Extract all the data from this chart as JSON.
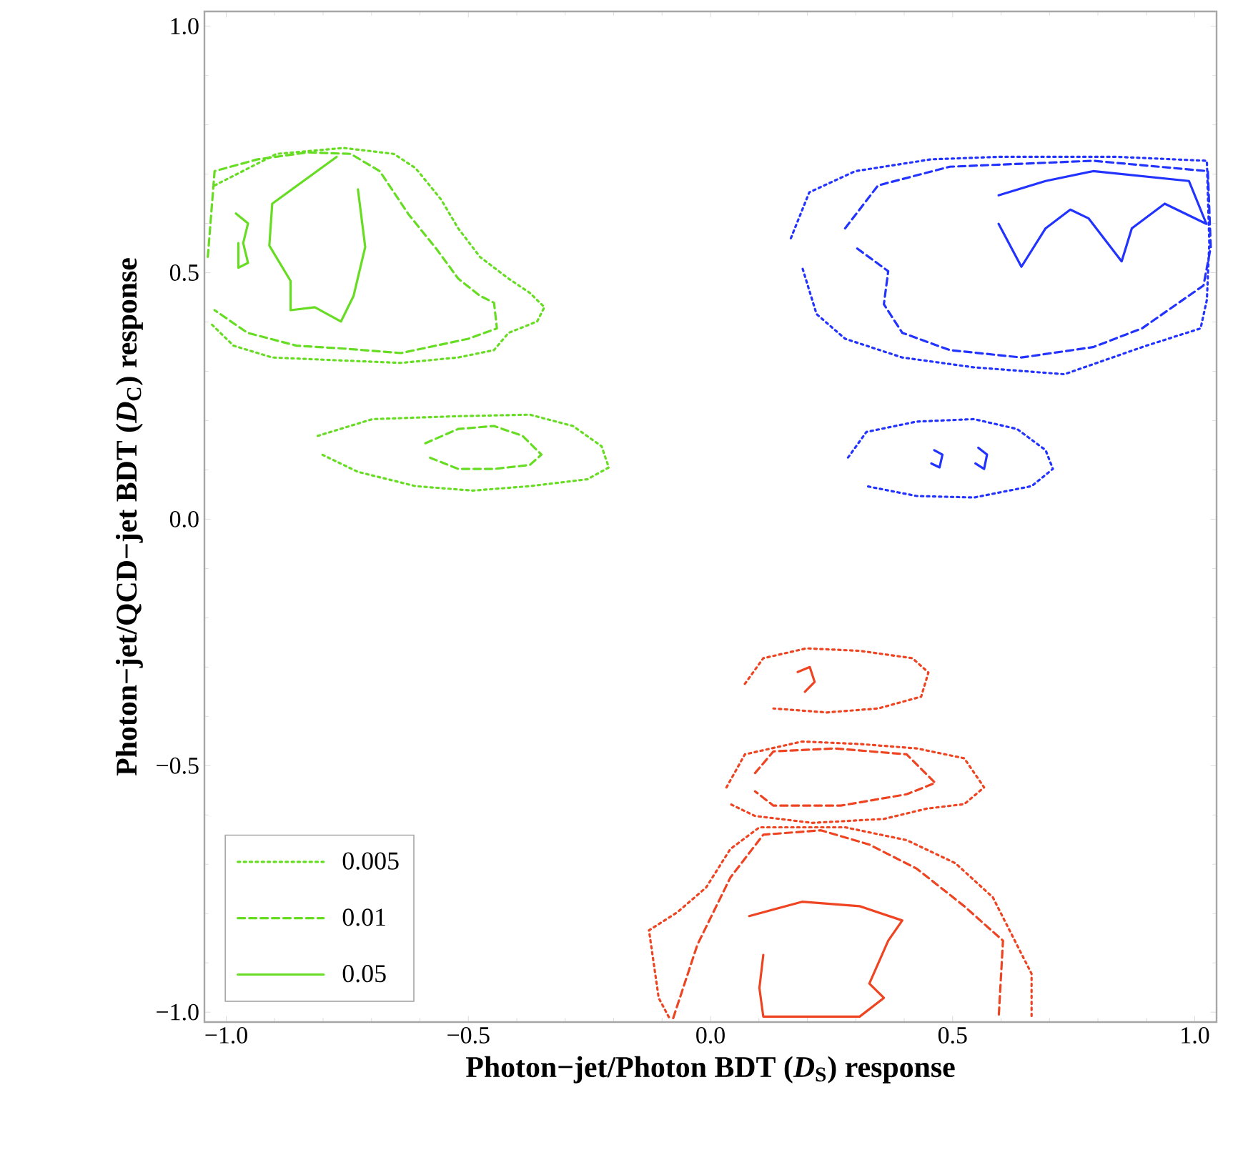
{
  "chart_data": {
    "type": "line",
    "xlabel": "Photon−jet/Photon BDT (*D*$_{S}$) response",
    "ylabel": "Photon−jet/QCD−jet BDT (*D*$_{C}$) response",
    "xlim": [
      -1.045,
      1.045
    ],
    "ylim": [
      -1.02,
      1.03
    ],
    "xticks": [
      {
        "value": -1.0,
        "label": "−1.0"
      },
      {
        "value": -0.5,
        "label": "−0.5"
      },
      {
        "value": 0.0,
        "label": "0.0"
      },
      {
        "value": 0.5,
        "label": "0.5"
      },
      {
        "value": 1.0,
        "label": "1.0"
      }
    ],
    "yticks": [
      {
        "value": -1.0,
        "label": "−1.0"
      },
      {
        "value": -0.5,
        "label": "−0.5"
      },
      {
        "value": 0.0,
        "label": "0.0"
      },
      {
        "value": 0.5,
        "label": "0.5"
      },
      {
        "value": 1.0,
        "label": "1.0"
      }
    ],
    "grid": false,
    "legend": "bottom left",
    "marker": "none",
    "series": [
      {
        "name": "0.005",
        "color": "#66dd22",
        "line_style": "dotted",
        "x": [
          -1.024,
          -0.896,
          -0.757,
          -0.654,
          -0.609,
          -0.556,
          -0.521,
          -0.476,
          -0.417,
          -0.373,
          -0.343,
          -0.358,
          -0.417,
          -0.447,
          -0.521,
          -0.639,
          -0.787,
          -0.905,
          -0.985,
          -1.033
        ],
        "values": [
          0.677,
          0.741,
          0.753,
          0.741,
          0.712,
          0.648,
          0.59,
          0.532,
          0.488,
          0.459,
          0.43,
          0.401,
          0.378,
          0.343,
          0.328,
          0.317,
          0.323,
          0.328,
          0.352,
          0.398
        ]
      },
      {
        "name": "0.01",
        "color": "#66dd22",
        "line_style": "dashed",
        "x": [
          -1.038,
          -1.024,
          -0.935,
          -0.831,
          -0.743,
          -0.683,
          -0.624,
          -0.565,
          -0.521,
          -0.476,
          -0.447,
          -0.441,
          -0.5,
          -0.639,
          -0.757,
          -0.855,
          -0.956,
          -1.024
        ],
        "values": [
          0.532,
          0.706,
          0.73,
          0.744,
          0.741,
          0.706,
          0.619,
          0.547,
          0.488,
          0.453,
          0.439,
          0.387,
          0.366,
          0.337,
          0.346,
          0.352,
          0.378,
          0.424
        ]
      },
      {
        "name": "0.05",
        "color": "#66dd22",
        "line_style": "solid",
        "x": [
          -0.772,
          -0.905,
          -0.911,
          -0.867,
          -0.867,
          -0.817,
          -0.763,
          -0.737,
          -0.713,
          -0.728
        ],
        "values": [
          0.735,
          0.64,
          0.555,
          0.483,
          0.424,
          0.43,
          0.401,
          0.453,
          0.552,
          0.669
        ]
      },
      {
        "color": "#66dd22",
        "line_style": "solid",
        "x": [
          -0.98,
          -0.955,
          -0.965,
          -0.955,
          -0.975,
          -0.975
        ],
        "values": [
          0.62,
          0.6,
          0.56,
          0.52,
          0.51,
          0.56
        ]
      },
      {
        "color": "#66dd22",
        "line_style": "dotted",
        "x": [
          -0.811,
          -0.698,
          -0.521,
          -0.373,
          -0.284,
          -0.225,
          -0.21,
          -0.254,
          -0.373,
          -0.491,
          -0.609,
          -0.728,
          -0.802
        ],
        "values": [
          0.169,
          0.203,
          0.209,
          0.212,
          0.189,
          0.148,
          0.105,
          0.081,
          0.067,
          0.058,
          0.067,
          0.096,
          0.131
        ]
      },
      {
        "color": "#66dd22",
        "line_style": "dashed",
        "x": [
          -0.589,
          -0.521,
          -0.447,
          -0.388,
          -0.349,
          -0.373,
          -0.447,
          -0.521,
          -0.58
        ],
        "values": [
          0.154,
          0.183,
          0.189,
          0.169,
          0.131,
          0.11,
          0.102,
          0.102,
          0.125
        ]
      },
      {
        "color": "#2233ff",
        "line_style": "dotted",
        "x": [
          0.166,
          0.204,
          0.299,
          0.456,
          0.595,
          0.84,
          1.025,
          1.03,
          1.025,
          1.012,
          0.891,
          0.731,
          0.544,
          0.396,
          0.278,
          0.219,
          0.189
        ],
        "values": [
          0.57,
          0.663,
          0.706,
          0.73,
          0.735,
          0.735,
          0.727,
          0.561,
          0.445,
          0.387,
          0.349,
          0.294,
          0.308,
          0.328,
          0.366,
          0.416,
          0.512
        ]
      },
      {
        "color": "#2233ff",
        "line_style": "dashed",
        "x": [
          0.278,
          0.346,
          0.494,
          0.79,
          1.027,
          1.033,
          1.018,
          0.891,
          0.79,
          0.642,
          0.494,
          0.396,
          0.358,
          0.367,
          0.299
        ],
        "values": [
          0.59,
          0.677,
          0.715,
          0.727,
          0.706,
          0.552,
          0.474,
          0.387,
          0.349,
          0.328,
          0.343,
          0.378,
          0.436,
          0.503,
          0.552
        ]
      },
      {
        "color": "#2233ff",
        "line_style": "solid",
        "x": [
          0.595,
          0.692,
          0.79,
          0.988,
          1.024,
          0.938,
          0.87,
          0.849,
          0.781,
          0.743,
          0.692,
          0.642,
          0.595
        ],
        "values": [
          0.657,
          0.686,
          0.706,
          0.686,
          0.599,
          0.64,
          0.59,
          0.523,
          0.61,
          0.628,
          0.59,
          0.512,
          0.599
        ]
      },
      {
        "color": "#2233ff",
        "line_style": "dotted",
        "x": [
          0.284,
          0.322,
          0.426,
          0.544,
          0.633,
          0.692,
          0.707,
          0.663,
          0.544,
          0.426,
          0.322
        ],
        "values": [
          0.125,
          0.177,
          0.198,
          0.203,
          0.183,
          0.14,
          0.102,
          0.067,
          0.044,
          0.047,
          0.067
        ]
      },
      {
        "color": "#2233ff",
        "line_style": "solid",
        "x": [
          0.462,
          0.479,
          0.473,
          0.456
        ],
        "values": [
          0.14,
          0.131,
          0.105,
          0.113
        ]
      },
      {
        "color": "#2233ff",
        "line_style": "solid",
        "x": [
          0.553,
          0.571,
          0.565,
          0.547
        ],
        "values": [
          0.145,
          0.131,
          0.102,
          0.113
        ]
      },
      {
        "color": "#ee4422",
        "line_style": "dotted",
        "x": [
          0.071,
          0.109,
          0.198,
          0.308,
          0.417,
          0.45,
          0.435,
          0.346,
          0.24,
          0.13
        ],
        "values": [
          -0.334,
          -0.282,
          -0.262,
          -0.267,
          -0.282,
          -0.311,
          -0.36,
          -0.384,
          -0.392,
          -0.384
        ]
      },
      {
        "color": "#ee4422",
        "line_style": "solid",
        "x": [
          0.18,
          0.205,
          0.215,
          0.195
        ],
        "values": [
          -0.31,
          -0.3,
          -0.33,
          -0.35
        ]
      },
      {
        "color": "#ee4422",
        "line_style": "dotted",
        "x": [
          0.033,
          0.071,
          0.189,
          0.308,
          0.426,
          0.524,
          0.565,
          0.524,
          0.447,
          0.358,
          0.21,
          0.092,
          0.041
        ],
        "values": [
          -0.544,
          -0.477,
          -0.451,
          -0.456,
          -0.465,
          -0.485,
          -0.544,
          -0.578,
          -0.587,
          -0.608,
          -0.616,
          -0.602,
          -0.578
        ]
      },
      {
        "color": "#ee4422",
        "line_style": "dashed",
        "x": [
          0.092,
          0.13,
          0.257,
          0.405,
          0.464,
          0.405,
          0.269,
          0.13,
          0.092
        ],
        "values": [
          -0.515,
          -0.471,
          -0.465,
          -0.477,
          -0.535,
          -0.558,
          -0.581,
          -0.581,
          -0.552
        ]
      },
      {
        "color": "#ee4422",
        "line_style": "dotted",
        "x": [
          -0.086,
          -0.107,
          -0.127,
          -0.068,
          -0.009,
          0.041,
          0.101,
          0.278,
          0.405,
          0.506,
          0.583,
          0.663,
          0.663
        ],
        "values": [
          -1.01,
          -0.971,
          -0.834,
          -0.797,
          -0.747,
          -0.669,
          -0.625,
          -0.625,
          -0.651,
          -0.698,
          -0.767,
          -0.922,
          -1.009
        ]
      },
      {
        "color": "#ee4422",
        "line_style": "dashed",
        "x": [
          -0.077,
          -0.027,
          0.041,
          0.109,
          0.228,
          0.328,
          0.426,
          0.524,
          0.604,
          0.595
        ],
        "values": [
          -1.012,
          -0.863,
          -0.727,
          -0.64,
          -0.631,
          -0.66,
          -0.709,
          -0.785,
          -0.855,
          -1.012
        ]
      },
      {
        "color": "#ee4422",
        "line_style": "solid",
        "x": [
          0.08,
          0.189,
          0.308,
          0.396,
          0.367,
          0.328,
          0.358,
          0.308,
          0.109,
          0.101,
          0.109
        ],
        "values": [
          -0.805,
          -0.776,
          -0.785,
          -0.814,
          -0.855,
          -0.942,
          -0.971,
          -1.009,
          -1.009,
          -0.951,
          -0.884
        ]
      }
    ]
  }
}
